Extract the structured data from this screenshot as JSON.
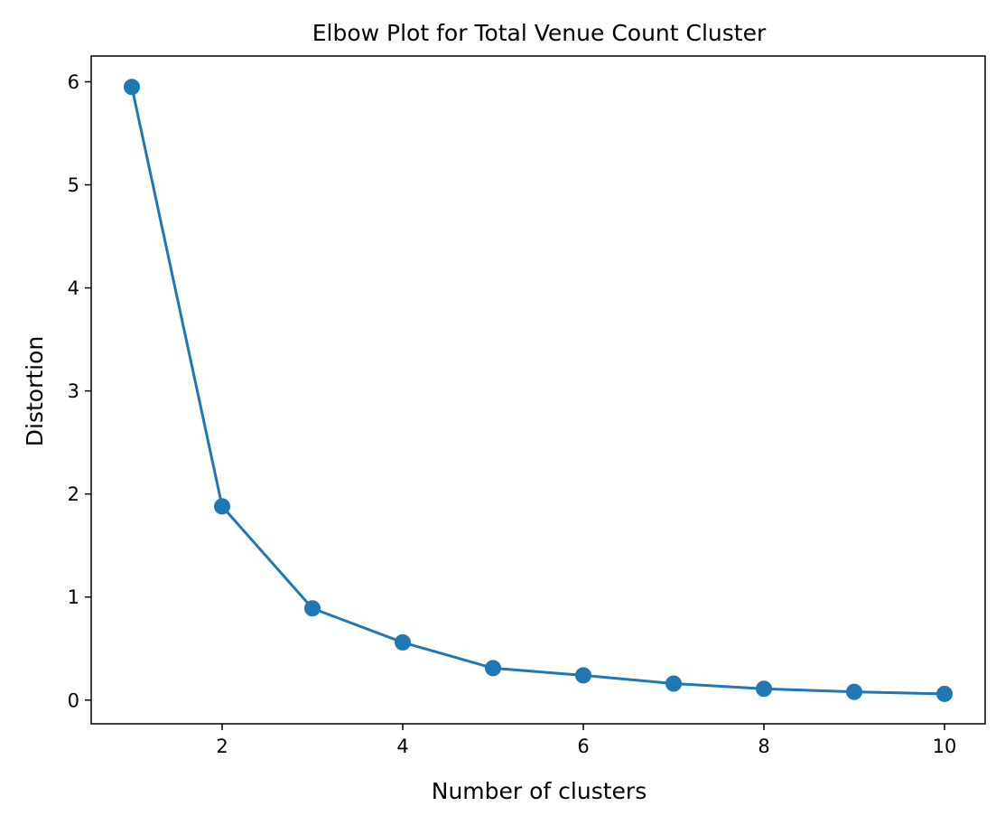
{
  "chart_data": {
    "type": "line",
    "title": "Elbow Plot for Total Venue Count Cluster",
    "xlabel": "Number of clusters",
    "ylabel": "Distortion",
    "x": [
      1,
      2,
      3,
      4,
      5,
      6,
      7,
      8,
      9,
      10
    ],
    "series": [
      {
        "values": [
          5.95,
          1.88,
          0.89,
          0.56,
          0.31,
          0.24,
          0.16,
          0.11,
          0.08,
          0.06
        ],
        "color": "#1f77b4",
        "marker": "circle"
      }
    ],
    "xlim": [
      0.55,
      10.45
    ],
    "ylim": [
      -0.23,
      6.25
    ],
    "xticks": [
      2,
      4,
      6,
      8,
      10
    ],
    "yticks": [
      0,
      1,
      2,
      3,
      4,
      5,
      6
    ],
    "grid": false,
    "legend": "none"
  }
}
